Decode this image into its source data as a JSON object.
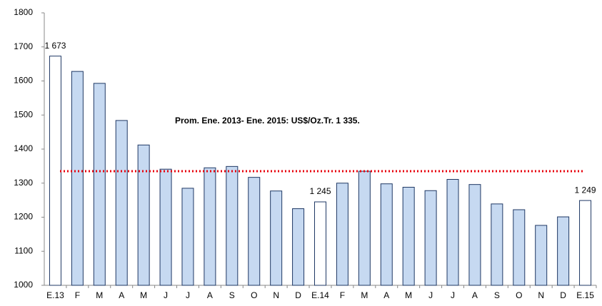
{
  "chart_data": {
    "type": "bar",
    "categories": [
      "E.13",
      "F",
      "M",
      "A",
      "M",
      "J",
      "J",
      "A",
      "S",
      "O",
      "N",
      "D",
      "E.14",
      "F",
      "M",
      "A",
      "M",
      "J",
      "J",
      "A",
      "S",
      "O",
      "N",
      "D",
      "E.15"
    ],
    "values": [
      1673,
      1628,
      1593,
      1484,
      1412,
      1341,
      1285,
      1345,
      1349,
      1317,
      1277,
      1225,
      1245,
      1300,
      1335,
      1298,
      1288,
      1278,
      1311,
      1296,
      1239,
      1222,
      1176,
      1201,
      1249
    ],
    "value_labels": [
      "1 673",
      null,
      null,
      null,
      null,
      null,
      null,
      null,
      null,
      null,
      null,
      null,
      "1 245",
      null,
      null,
      null,
      null,
      null,
      null,
      null,
      null,
      null,
      null,
      null,
      "1 249"
    ],
    "colors": [
      "#ffffff",
      "#c6d9f1",
      "#c6d9f1",
      "#c6d9f1",
      "#c6d9f1",
      "#c6d9f1",
      "#c6d9f1",
      "#c6d9f1",
      "#c6d9f1",
      "#c6d9f1",
      "#c6d9f1",
      "#c6d9f1",
      "#ffffff",
      "#c6d9f1",
      "#c6d9f1",
      "#c6d9f1",
      "#c6d9f1",
      "#c6d9f1",
      "#c6d9f1",
      "#c6d9f1",
      "#c6d9f1",
      "#c6d9f1",
      "#c6d9f1",
      "#c6d9f1",
      "#ffffff"
    ],
    "border_color": "#1f3864",
    "ylim": [
      1000,
      1800
    ],
    "yticks": [
      1000,
      1100,
      1200,
      1300,
      1400,
      1500,
      1600,
      1700,
      1800
    ],
    "reference_line": {
      "value": 1335,
      "label": "Prom. Ene. 2013- Ene. 2015: US$/Oz.Tr. 1 335.",
      "color": "#e8000b"
    }
  }
}
